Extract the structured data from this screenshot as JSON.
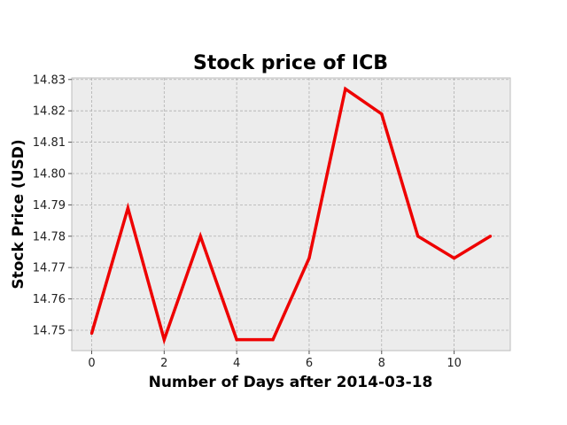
{
  "chart_data": {
    "type": "line",
    "title": "Stock price of ICB",
    "xlabel": "Number of Days after 2014-03-18",
    "ylabel": "Stock Price (USD)",
    "x": [
      0,
      1,
      2,
      3,
      4,
      5,
      6,
      7,
      8,
      9,
      10,
      11
    ],
    "series": [
      {
        "values": [
          14.749,
          14.789,
          14.747,
          14.78,
          14.747,
          14.747,
          14.773,
          14.827,
          14.819,
          14.78,
          14.773,
          14.78
        ]
      }
    ],
    "xlim": [
      -0.55,
      11.55
    ],
    "ylim": [
      14.7435,
      14.8305
    ],
    "x_ticks": [
      0,
      2,
      4,
      6,
      8,
      10
    ],
    "x_tick_labels": [
      "0",
      "2",
      "4",
      "6",
      "8",
      "10"
    ],
    "y_ticks": [
      14.75,
      14.76,
      14.77,
      14.78,
      14.79,
      14.8,
      14.81,
      14.82,
      14.83
    ],
    "y_tick_labels": [
      "14.75",
      "14.76",
      "14.77",
      "14.78",
      "14.79",
      "14.80",
      "14.81",
      "14.82",
      "14.83"
    ],
    "grid": true,
    "colors": {
      "line": "#ee0000",
      "plot_background": "#ececec",
      "frame": "#bcbcbc"
    }
  }
}
